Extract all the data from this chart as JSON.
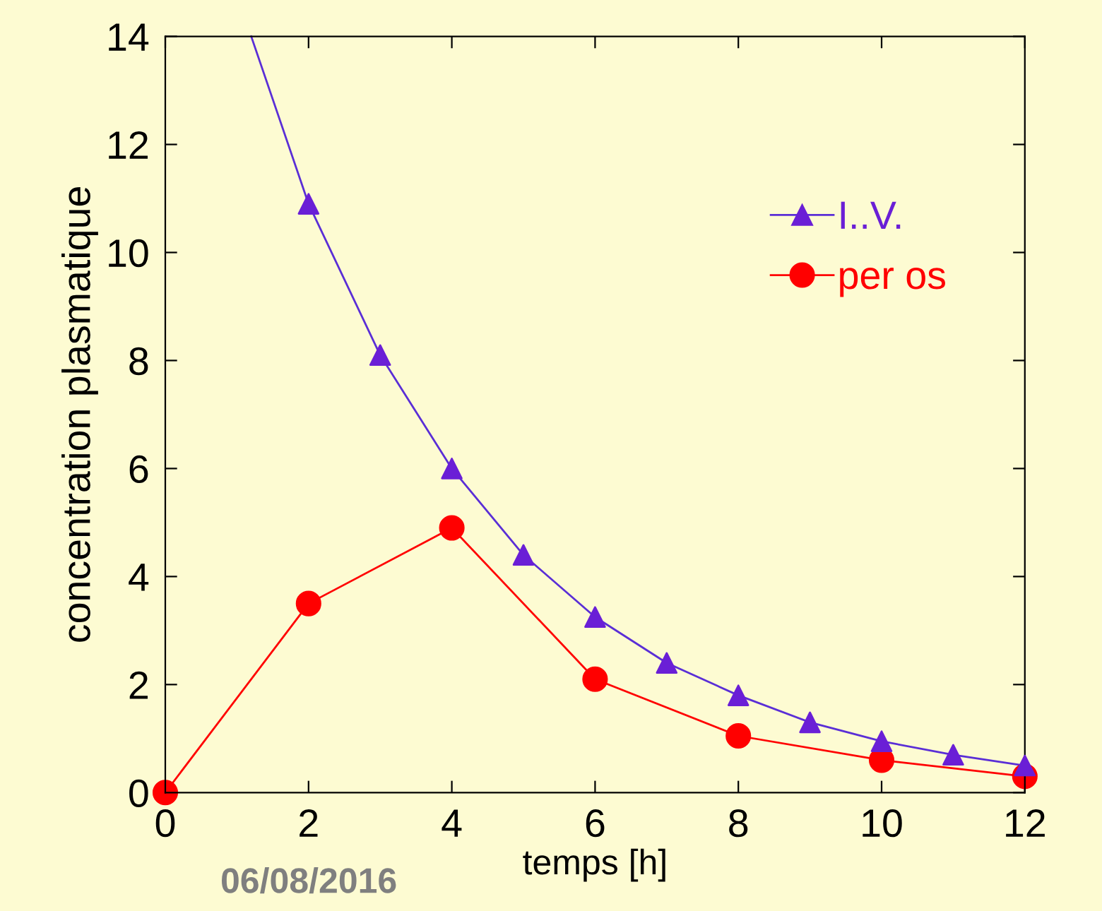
{
  "chart_data": {
    "type": "line",
    "xlabel": "temps [h]",
    "ylabel": "concentration plasmatique",
    "xlim": [
      0,
      12
    ],
    "ylim": [
      0,
      14
    ],
    "xticks": [
      0,
      2,
      4,
      6,
      8,
      10,
      12
    ],
    "yticks": [
      0,
      2,
      4,
      6,
      8,
      10,
      12,
      14
    ],
    "grid": false,
    "legend": "top right",
    "line_style": "solid",
    "series": [
      {
        "type": "line",
        "color": "#5a2ed6",
        "marker": "none",
        "x": [
          1.2,
          2,
          3,
          4,
          5,
          6,
          7,
          8,
          9,
          10,
          11,
          12
        ],
        "values": [
          14,
          10.9,
          8.1,
          6.0,
          4.4,
          3.25,
          2.4,
          1.8,
          1.3,
          0.95,
          0.7,
          0.5
        ]
      },
      {
        "type": "scatter",
        "name": "I..V.",
        "color": "#6a1fd6",
        "marker": "triangle",
        "x": [
          2,
          3,
          4,
          5,
          6,
          7,
          8,
          9,
          10,
          11,
          12
        ],
        "values": [
          10.9,
          8.1,
          6.0,
          4.4,
          3.25,
          2.4,
          1.8,
          1.3,
          0.95,
          0.7,
          0.5
        ]
      },
      {
        "name": "per os",
        "color": "#ff0000",
        "marker": "circle",
        "x": [
          0,
          2,
          4,
          6,
          8,
          10,
          12
        ],
        "values": [
          0,
          3.5,
          4.9,
          2.1,
          1.05,
          0.6,
          0.3
        ]
      }
    ],
    "annotations": [
      "06/08/2016"
    ]
  }
}
